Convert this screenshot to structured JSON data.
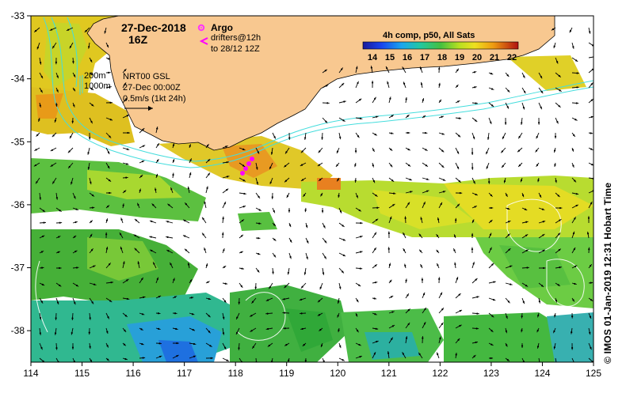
{
  "map": {
    "date": "27-Dec-2018",
    "hour": "16Z",
    "legend": {
      "argo_label": "Argo",
      "drifters_line1": "drifters@12h",
      "drifters_line2": "to 28/12 12Z",
      "argo_color": "#ff33ff",
      "drifter_color": "#ff00ff"
    },
    "depth_labels": [
      "200m",
      "1000m"
    ],
    "current_info": {
      "model": "NRT00 GSL",
      "time": "27-Dec 00:00Z",
      "scale": "0.5m/s (1kt 24h)"
    },
    "colorbar": {
      "title": "4h comp, p50, All Sats",
      "ticks": [
        "14",
        "15",
        "16",
        "17",
        "18",
        "19",
        "20",
        "21",
        "22"
      ]
    },
    "x_axis": {
      "ticks": [
        "114",
        "115",
        "116",
        "117",
        "118",
        "119",
        "120",
        "121",
        "122",
        "123",
        "124",
        "125"
      ],
      "min": 114,
      "max": 125
    },
    "y_axis": {
      "ticks": [
        "-33",
        "-34",
        "-35",
        "-36",
        "-37",
        "-38"
      ],
      "min": -38.5,
      "max": -33
    },
    "credit": "©  IMOS 01-Jan-2019 12:31 Hobart Time",
    "colors": {
      "land": "#f8c890",
      "cloud": "#ffffff",
      "contour": "#44dddd",
      "sst_contour": "#ffffff"
    }
  }
}
